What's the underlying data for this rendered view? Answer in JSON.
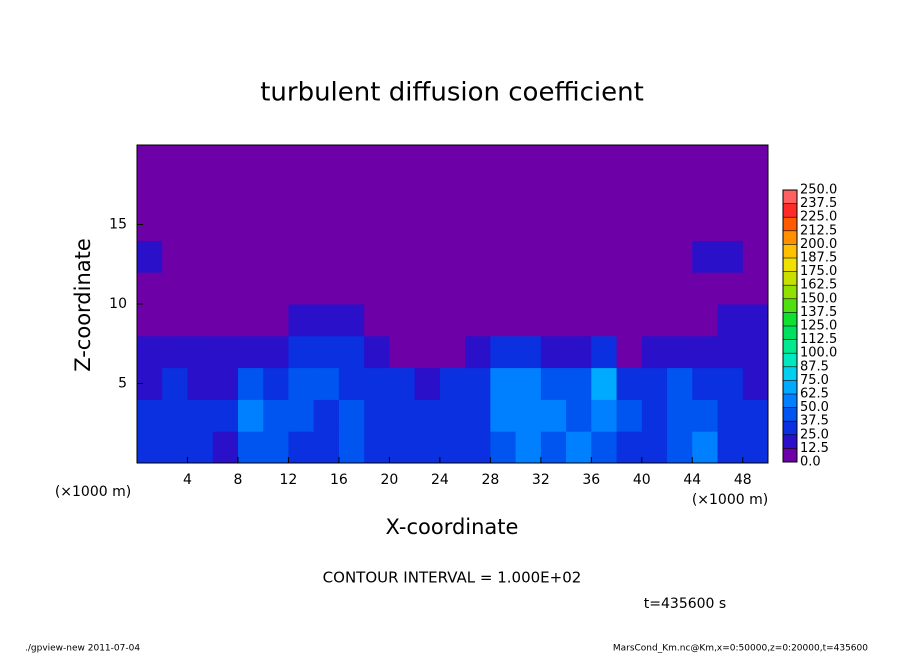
{
  "chart_data": {
    "type": "heatmap",
    "title": "turbulent diffusion coefficient",
    "xlabel": "X-coordinate",
    "ylabel": "Z-coordinate",
    "xunit": "(×1000 m)",
    "yunit": "(×1000 m)",
    "xlim": [
      0,
      50
    ],
    "ylim": [
      0,
      20
    ],
    "xticks": [
      4,
      8,
      12,
      16,
      20,
      24,
      28,
      32,
      36,
      40,
      44,
      48
    ],
    "yticks": [
      5,
      10,
      15
    ],
    "x_edges": [
      0,
      2,
      4,
      6,
      8,
      10,
      12,
      14,
      16,
      18,
      20,
      22,
      24,
      26,
      28,
      30,
      32,
      34,
      36,
      38,
      40,
      42,
      44,
      46,
      48,
      50
    ],
    "z_edges": [
      0,
      2,
      4,
      6,
      8,
      10,
      12,
      14,
      16,
      18,
      20
    ],
    "z": [
      [
        30,
        25,
        35,
        20,
        45,
        40,
        35,
        30,
        40,
        35,
        25,
        30,
        35,
        30,
        40,
        55,
        45,
        50,
        40,
        35,
        30,
        45,
        50,
        35,
        30
      ],
      [
        25,
        30,
        30,
        35,
        60,
        45,
        40,
        35,
        40,
        35,
        30,
        25,
        30,
        30,
        50,
        60,
        55,
        45,
        60,
        40,
        35,
        40,
        45,
        30,
        25
      ],
      [
        20,
        25,
        15,
        20,
        40,
        35,
        45,
        40,
        35,
        30,
        30,
        20,
        25,
        35,
        55,
        50,
        45,
        40,
        65,
        25,
        35,
        40,
        30,
        25,
        20
      ],
      [
        15,
        15,
        15,
        15,
        15,
        20,
        25,
        30,
        25,
        20,
        5,
        5,
        0,
        20,
        25,
        30,
        20,
        15,
        30,
        0,
        15,
        15,
        15,
        20,
        15
      ],
      [
        0,
        0,
        0,
        0,
        0,
        0,
        15,
        15,
        15,
        0,
        0,
        0,
        0,
        0,
        0,
        0,
        0,
        0,
        0,
        0,
        0,
        0,
        0,
        15,
        15
      ],
      [
        0,
        0,
        0,
        0,
        0,
        0,
        0,
        0,
        0,
        0,
        0,
        0,
        0,
        0,
        0,
        0,
        0,
        0,
        0,
        0,
        0,
        0,
        0,
        0,
        0
      ],
      [
        15,
        0,
        0,
        0,
        0,
        0,
        0,
        0,
        0,
        0,
        0,
        0,
        0,
        0,
        0,
        0,
        0,
        0,
        0,
        0,
        0,
        0,
        15,
        15,
        0
      ],
      [
        0,
        0,
        0,
        0,
        0,
        0,
        0,
        0,
        0,
        0,
        0,
        0,
        0,
        0,
        0,
        0,
        0,
        0,
        0,
        0,
        0,
        0,
        0,
        0,
        0
      ],
      [
        0,
        0,
        0,
        0,
        0,
        0,
        0,
        0,
        0,
        0,
        0,
        0,
        0,
        0,
        0,
        0,
        0,
        0,
        0,
        0,
        0,
        0,
        0,
        0,
        0
      ],
      [
        0,
        0,
        0,
        0,
        0,
        0,
        0,
        0,
        0,
        0,
        0,
        0,
        0,
        0,
        0,
        0,
        0,
        0,
        0,
        0,
        0,
        0,
        0,
        0,
        0
      ]
    ],
    "levels": [
      {
        "value": 0,
        "label": "0.0"
      },
      12.5,
      {
        "value": 25,
        "label": "25.0"
      },
      37.5,
      {
        "value": 50,
        "label": "50.0"
      },
      62.5,
      {
        "value": 75,
        "label": "75.0"
      },
      87.5,
      {
        "value": 100,
        "label": "100.0"
      },
      112.5,
      {
        "value": 125,
        "label": "125.0"
      },
      137.5,
      {
        "value": 150,
        "label": "150.0"
      },
      162.5,
      {
        "value": 175,
        "label": "175.0"
      },
      187.5,
      {
        "value": 200,
        "label": "200.0"
      },
      212.5,
      {
        "value": 225,
        "label": "225.0"
      },
      237.5,
      {
        "value": 250,
        "label": "250.0"
      }
    ],
    "colors": [
      "#6e00a8",
      "#2a10c8",
      "#0a30e0",
      "#0055f0",
      "#0080ff",
      "#00aaff",
      "#00d0f0",
      "#00e8c0",
      "#00e890",
      "#00e060",
      "#10e030",
      "#50e010",
      "#90e000",
      "#c8e000",
      "#f0e000",
      "#ffc000",
      "#ff9000",
      "#ff5a00",
      "#ff2a2a",
      "#ff6060",
      "#ff9a9a"
    ],
    "note": "CONTOUR INTERVAL = 1.000E+02",
    "time_label": "t=435600 s",
    "footer_left": "./gpview-new  2011-07-04",
    "footer_right": "MarsCond_Km.nc@Km,x=0:50000,z=0:20000,t=435600"
  }
}
